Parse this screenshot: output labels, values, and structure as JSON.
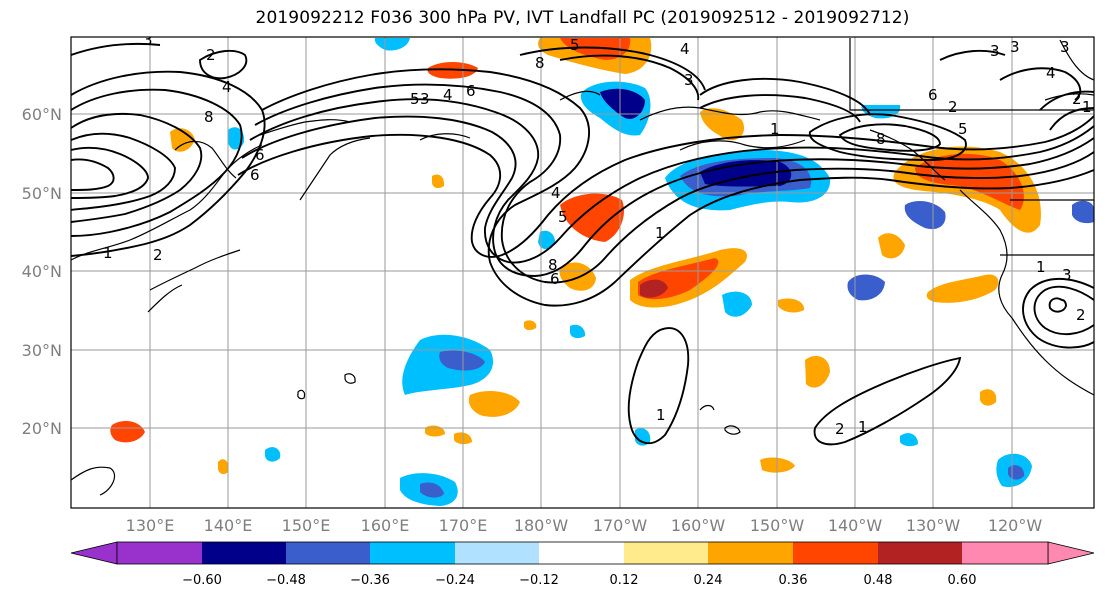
{
  "title": "2019092212 F036 300 hPa PV, IVT Landfall PC (2019092512 - 2019092712)",
  "map": {
    "region": "North Pacific",
    "lat_labels": [
      "60°N",
      "50°N",
      "40°N",
      "30°N",
      "20°N"
    ],
    "lon_labels": [
      "130°E",
      "140°E",
      "150°E",
      "160°E",
      "170°E",
      "180°W",
      "170°W",
      "160°W",
      "150°W",
      "140°W",
      "130°W",
      "120°W"
    ],
    "contour_labels": [
      "3",
      "2",
      "4",
      "8",
      "6",
      "5",
      "3",
      "4",
      "6",
      "8",
      "4",
      "5",
      "3",
      "1",
      "8",
      "6",
      "5",
      "2",
      "3",
      "1",
      "4",
      "5",
      "6",
      "8",
      "3",
      "2",
      "1",
      "3",
      "2",
      "1",
      "4",
      "3",
      "6",
      "2",
      "1",
      "2",
      "1",
      "1"
    ],
    "contour_color": "#000000",
    "grid_color": "#9a9a9a"
  },
  "colorbar": {
    "ticks": [
      "−0.60",
      "−0.48",
      "−0.36",
      "−0.24",
      "−0.12",
      "0.12",
      "0.24",
      "0.36",
      "0.48",
      "0.60"
    ],
    "bin_colors": [
      "#9932cc",
      "#00008b",
      "#3a5fcd",
      "#00bfff",
      "#b0e2ff",
      "#ffffff",
      "#ffeb8c",
      "#ffa500",
      "#ff4500",
      "#b22222",
      "#ff88b0"
    ],
    "extend": "both"
  }
}
